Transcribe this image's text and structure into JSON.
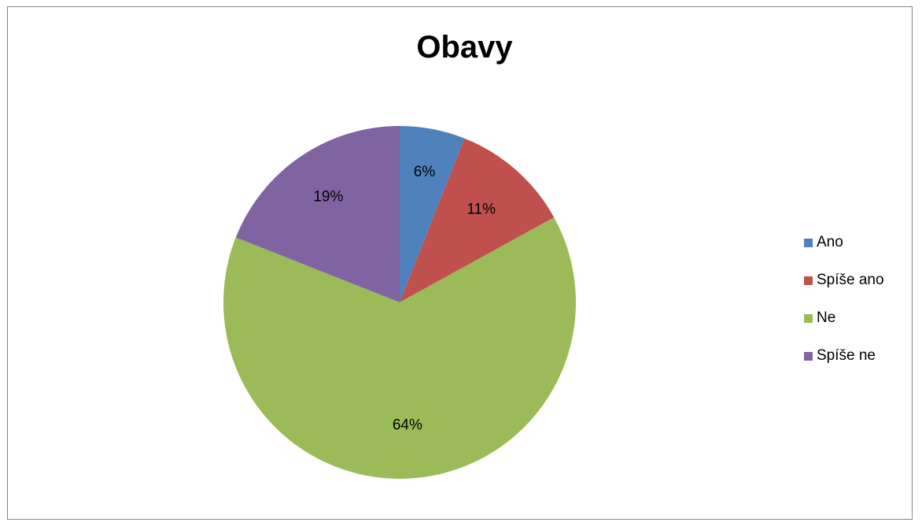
{
  "chart_data": {
    "type": "pie",
    "title": "Obavy",
    "categories": [
      "Ano",
      "Spíše ano",
      "Ne",
      "Spíše ne"
    ],
    "values": [
      6,
      11,
      64,
      19
    ],
    "labels": [
      "6%",
      "11%",
      "64%",
      "19%"
    ],
    "colors": [
      "#4f81bd",
      "#c0504d",
      "#9bbb59",
      "#8064a2"
    ],
    "legend_position": "right",
    "start_angle_deg": 0,
    "direction": "clockwise"
  }
}
